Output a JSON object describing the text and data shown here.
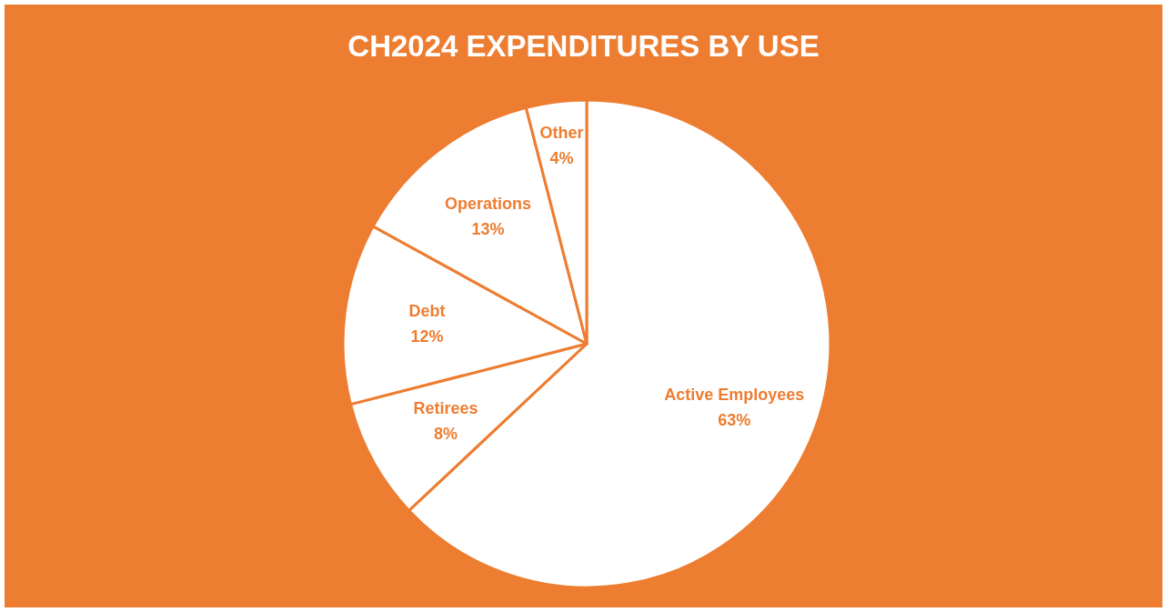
{
  "chart_data": {
    "type": "pie",
    "title": "CH2024 EXPENDITURES BY USE",
    "categories": [
      "Active Employees",
      "Retirees",
      "Debt",
      "Operations",
      "Other"
    ],
    "values": [
      63,
      8,
      12,
      13,
      4
    ],
    "colors": [
      "#ffffff",
      "#ffffff",
      "#ffffff",
      "#ffffff",
      "#ffffff"
    ],
    "value_labels": [
      "63%",
      "8%",
      "12%",
      "13%",
      "4%"
    ],
    "legend": false
  }
}
